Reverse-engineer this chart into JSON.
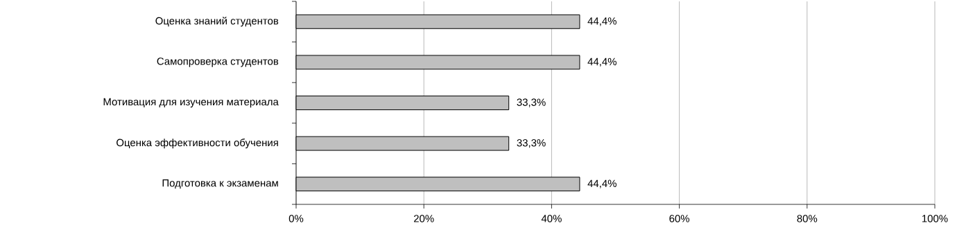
{
  "chart_data": {
    "type": "bar",
    "orientation": "horizontal",
    "categories": [
      "Оценка знаний студентов",
      "Самопроверка студентов",
      "Мотивация для изучения материала",
      "Оценка эффективности обучения",
      "Подготовка к экзаменам"
    ],
    "values": [
      44.4,
      44.4,
      33.3,
      33.3,
      44.4
    ],
    "value_labels": [
      "44,4%",
      "44,4%",
      "33,3%",
      "33,3%",
      "44,4%"
    ],
    "color": "#bfbfbf",
    "xlim": [
      0,
      100
    ],
    "xticks": [
      {
        "value": 0,
        "label": "0%"
      },
      {
        "value": 20,
        "label": "20%"
      },
      {
        "value": 40,
        "label": "40%"
      },
      {
        "value": 60,
        "label": "60%"
      },
      {
        "value": 80,
        "label": "80%"
      },
      {
        "value": 100,
        "label": "100%"
      }
    ],
    "grid": "x"
  }
}
